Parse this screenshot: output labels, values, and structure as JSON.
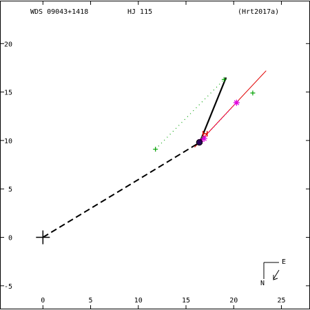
{
  "header": {
    "wds": "WDS 09043+1418",
    "discoverer": "HJ  115",
    "reference": "(Hrt2017a)"
  },
  "compass": {
    "north": "N",
    "east": "E"
  },
  "chart_data": {
    "type": "scatter",
    "title": "",
    "xlabel": "",
    "ylabel": "",
    "xlim": [
      -4.5,
      28
    ],
    "ylim": [
      -7.5,
      24.5
    ],
    "x_ticks": [
      0,
      5,
      10,
      15,
      20,
      25
    ],
    "x_tick_labels": [
      "0",
      "5",
      "10",
      "15",
      "20",
      "25"
    ],
    "y_ticks": [
      -5,
      0,
      5,
      10,
      15,
      20
    ],
    "y_tick_labels": [
      "-5",
      "0",
      "5",
      "10",
      "15",
      "20"
    ],
    "primary": {
      "x": 0,
      "y": 0
    },
    "dashed_line": {
      "from": [
        0,
        0
      ],
      "to": [
        16.6,
        9.9
      ]
    },
    "orbit_segment": {
      "from": [
        16.4,
        9.7
      ],
      "to": [
        19.2,
        16.5
      ]
    },
    "red_line": {
      "from": [
        15.9,
        9.3
      ],
      "to": [
        23.4,
        17.2
      ]
    },
    "green_dotted": {
      "from": [
        11.8,
        9.1
      ],
      "to": [
        19.0,
        16.3
      ]
    },
    "magenta_dotted": {
      "from": [
        16.7,
        10.1
      ],
      "to": [
        20.3,
        13.9
      ]
    },
    "green_plus_points": [
      {
        "x": 11.8,
        "y": 9.1
      },
      {
        "x": 19.0,
        "y": 16.3
      },
      {
        "x": 22.0,
        "y": 14.9
      },
      {
        "x": 16.8,
        "y": 10.3
      }
    ],
    "magenta_star_points": [
      {
        "x": 20.3,
        "y": 13.9
      },
      {
        "x": 16.9,
        "y": 10.2
      },
      {
        "x": 16.5,
        "y": 9.9
      }
    ],
    "red_marker": {
      "x": 17.0,
      "y": 10.7
    },
    "current_position": {
      "x": 16.4,
      "y": 9.8
    }
  }
}
